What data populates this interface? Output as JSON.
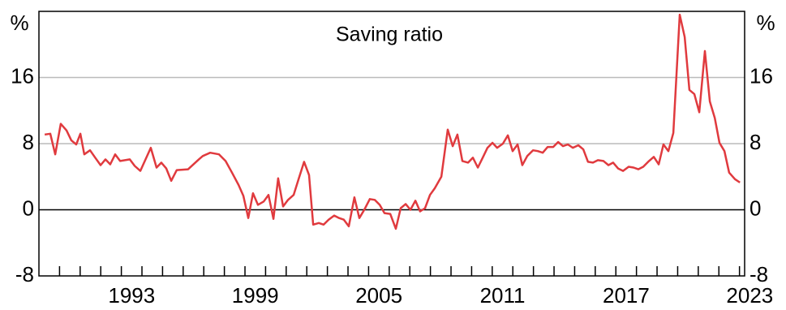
{
  "chart_data": {
    "type": "line",
    "title": "Saving ratio",
    "y_unit": "%",
    "xlim": [
      1989,
      2023.25
    ],
    "ylim": [
      -8,
      24
    ],
    "yticks": [
      -8,
      0,
      8,
      16
    ],
    "xticks": [
      {
        "value": 1993.5,
        "label": "1993"
      },
      {
        "value": 1999.5,
        "label": "1999"
      },
      {
        "value": 2005.5,
        "label": "2005"
      },
      {
        "value": 2011.5,
        "label": "2011"
      },
      {
        "value": 2017.5,
        "label": "2017"
      },
      {
        "value": 2023.5,
        "label": "2023"
      }
    ],
    "xminor": [
      1990,
      1991,
      1992,
      1993,
      1994,
      1995,
      1996,
      1997,
      1998,
      1999,
      2000,
      2001,
      2002,
      2003,
      2004,
      2005,
      2006,
      2007,
      2008,
      2009,
      2010,
      2011,
      2012,
      2013,
      2014,
      2015,
      2016,
      2017,
      2018,
      2019,
      2020,
      2021,
      2022,
      2023
    ],
    "grid": true,
    "series": [
      {
        "name": "Saving ratio",
        "color": "#e03a3e",
        "x": [
          1989.28,
          1989.55,
          1989.79,
          1990.06,
          1990.34,
          1990.57,
          1990.81,
          1991.01,
          1991.2,
          1991.48,
          1991.76,
          1991.99,
          1992.23,
          1992.46,
          1992.7,
          1992.94,
          1993.41,
          1993.65,
          1993.92,
          1994.43,
          1994.71,
          1994.94,
          1995.18,
          1995.42,
          1995.69,
          1996.24,
          1996.76,
          1996.95,
          1997.31,
          1997.74,
          1998.06,
          1998.37,
          1998.69,
          1998.92,
          1999.16,
          1999.39,
          1999.63,
          1999.91,
          2000.14,
          2000.38,
          2000.61,
          2000.85,
          2001.09,
          2001.36,
          2001.6,
          2001.87,
          2002.11,
          2002.31,
          2002.58,
          2002.82,
          2003.06,
          2003.33,
          2003.57,
          2003.8,
          2004.04,
          2004.31,
          2004.55,
          2004.79,
          2005.06,
          2005.3,
          2005.54,
          2005.77,
          2006.05,
          2006.32,
          2006.56,
          2006.8,
          2007.03,
          2007.27,
          2007.5,
          2007.74,
          2007.98,
          2008.21,
          2008.53,
          2008.84,
          2009.08,
          2009.31,
          2009.55,
          2009.83,
          2010.06,
          2010.3,
          2010.54,
          2010.77,
          2011.01,
          2011.24,
          2011.52,
          2011.76,
          2011.99,
          2012.23,
          2012.46,
          2012.7,
          2012.98,
          2013.21,
          2013.45,
          2013.69,
          2013.96,
          2014.2,
          2014.43,
          2014.67,
          2014.91,
          2015.18,
          2015.42,
          2015.65,
          2015.89,
          2016.13,
          2016.4,
          2016.64,
          2016.87,
          2017.11,
          2017.35,
          2017.62,
          2017.86,
          2018.09,
          2018.33,
          2018.61,
          2018.84,
          2019.08,
          2019.31,
          2019.55,
          2019.79,
          2020.1,
          2020.34,
          2020.57,
          2020.81,
          2021.05,
          2021.32,
          2021.56,
          2021.8,
          2022.03,
          2022.27,
          2022.5,
          2022.78,
          2023.02
        ],
        "values": [
          9.1,
          9.2,
          6.7,
          10.4,
          9.6,
          8.4,
          7.9,
          9.2,
          6.7,
          7.2,
          6.2,
          5.4,
          6.1,
          5.5,
          6.7,
          5.9,
          6.1,
          5.3,
          4.7,
          7.5,
          5.1,
          5.7,
          5.0,
          3.5,
          4.8,
          4.9,
          6.1,
          6.5,
          6.9,
          6.7,
          5.9,
          4.5,
          3.0,
          1.7,
          -1.0,
          2.0,
          0.6,
          1.0,
          1.8,
          -1.1,
          3.8,
          0.4,
          1.2,
          1.8,
          3.7,
          5.8,
          4.2,
          -1.8,
          -1.6,
          -1.8,
          -1.2,
          -0.7,
          -1.0,
          -1.2,
          -2.0,
          1.5,
          -1.0,
          0,
          1.3,
          1.2,
          0.6,
          -0.4,
          -0.5,
          -2.3,
          0.2,
          0.7,
          0,
          1.1,
          -0.2,
          0.2,
          1.8,
          2.6,
          4.0,
          9.7,
          7.7,
          9.1,
          5.9,
          5.7,
          6.3,
          5.1,
          6.3,
          7.5,
          8.1,
          7.5,
          8.0,
          9.0,
          7.1,
          7.9,
          5.4,
          6.5,
          7.2,
          7.1,
          6.9,
          7.6,
          7.6,
          8.2,
          7.7,
          7.9,
          7.5,
          7.8,
          7.3,
          5.8,
          5.7,
          6.0,
          5.9,
          5.4,
          5.7,
          5.0,
          4.7,
          5.2,
          5.1,
          4.9,
          5.2,
          5.9,
          6.4,
          5.5,
          7.9,
          7.1,
          9.3,
          23.6,
          20.9,
          14.5,
          14.0,
          11.8,
          19.2,
          13.1,
          11.1,
          8.1,
          7.1,
          4.5,
          3.7,
          3.3
        ]
      }
    ]
  }
}
